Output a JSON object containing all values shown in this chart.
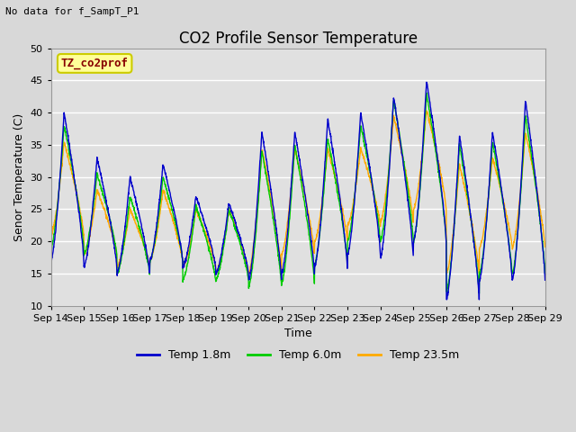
{
  "title": "CO2 Profile Sensor Temperature",
  "subtitle": "No data for f_SampT_P1",
  "ylabel": "Senor Temperature (C)",
  "xlabel": "Time",
  "legend_label": "TZ_co2prof",
  "ylim": [
    10,
    50
  ],
  "yticks": [
    10,
    15,
    20,
    25,
    30,
    35,
    40,
    45,
    50
  ],
  "xtick_labels": [
    "Sep 14",
    "Sep 15",
    "Sep 16",
    "Sep 17",
    "Sep 18",
    "Sep 19",
    "Sep 20",
    "Sep 21",
    "Sep 22",
    "Sep 23",
    "Sep 24",
    "Sep 25",
    "Sep 26",
    "Sep 27",
    "Sep 28",
    "Sep 29"
  ],
  "line_colors": {
    "temp1": "#0000cc",
    "temp2": "#00cc00",
    "temp3": "#ffaa00"
  },
  "line_labels": [
    "Temp 1.8m",
    "Temp 6.0m",
    "Temp 23.5m"
  ],
  "fig_bg_color": "#d8d8d8",
  "plot_bg_color": "#e0e0e0",
  "legend_box_facecolor": "#ffff99",
  "legend_box_edgecolor": "#cccc00",
  "legend_text_color": "#880000",
  "title_fontsize": 12,
  "axis_label_fontsize": 9,
  "tick_fontsize": 8,
  "subtitle_fontsize": 8
}
